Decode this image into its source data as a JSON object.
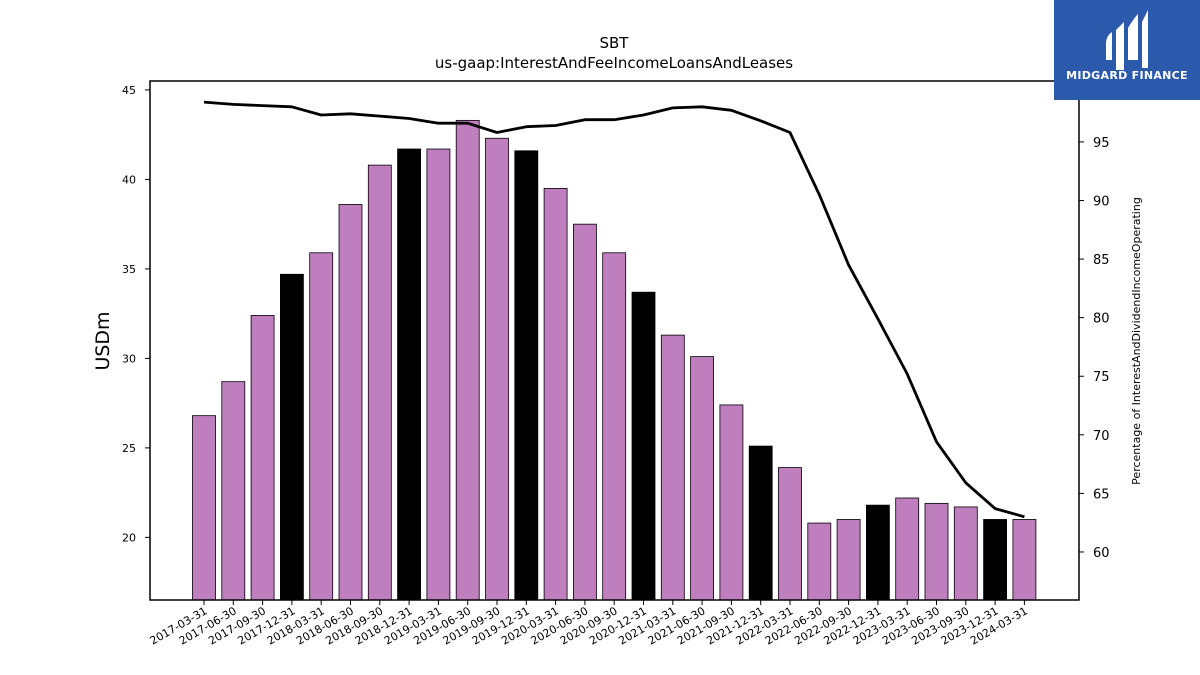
{
  "brand": {
    "name": "MIDGARD FINANCE",
    "background": "#2b5aad"
  },
  "chart_data": {
    "type": "bar",
    "title": "SBT",
    "subtitle": "us-gaap:InterestAndFeeIncomeLoansAndLeases",
    "ylabel": "USDm",
    "y2label": "Percentage of InterestAndDividendIncomeOperating",
    "ylim": [
      16.5,
      45.5
    ],
    "y2lim": [
      55.9,
      100.2
    ],
    "yticks": [
      20,
      25,
      30,
      35,
      40,
      45
    ],
    "y2ticks": [
      60,
      65,
      70,
      75,
      80,
      85,
      90,
      95
    ],
    "categories": [
      "2017-03-31",
      "2017-06-30",
      "2017-09-30",
      "2017-12-31",
      "2018-03-31",
      "2018-06-30",
      "2018-09-30",
      "2018-12-31",
      "2019-03-31",
      "2019-06-30",
      "2019-09-30",
      "2019-12-31",
      "2020-03-31",
      "2020-06-30",
      "2020-09-30",
      "2020-12-31",
      "2021-03-31",
      "2021-06-30",
      "2021-09-30",
      "2021-12-31",
      "2022-03-31",
      "2022-06-30",
      "2022-09-30",
      "2022-12-31",
      "2023-03-31",
      "2023-06-30",
      "2023-09-30",
      "2023-12-31",
      "2024-03-31"
    ],
    "series": [
      {
        "type": "bar",
        "axis": "left",
        "values": [
          26.8,
          28.7,
          32.4,
          34.7,
          35.9,
          38.6,
          40.8,
          41.7,
          41.7,
          43.3,
          42.3,
          41.6,
          39.5,
          37.5,
          35.9,
          33.7,
          31.3,
          30.1,
          27.4,
          25.1,
          23.9,
          20.8,
          21.0,
          21.8,
          22.2,
          21.9,
          21.7,
          21.0,
          21.0
        ],
        "colors": [
          "#bf7fbf",
          "#bf7fbf",
          "#bf7fbf",
          "#000000",
          "#bf7fbf",
          "#bf7fbf",
          "#bf7fbf",
          "#000000",
          "#bf7fbf",
          "#bf7fbf",
          "#bf7fbf",
          "#000000",
          "#bf7fbf",
          "#bf7fbf",
          "#bf7fbf",
          "#000000",
          "#bf7fbf",
          "#bf7fbf",
          "#bf7fbf",
          "#000000",
          "#bf7fbf",
          "#bf7fbf",
          "#bf7fbf",
          "#000000",
          "#bf7fbf",
          "#bf7fbf",
          "#bf7fbf",
          "#000000",
          "#bf7fbf"
        ]
      },
      {
        "type": "line",
        "axis": "right",
        "color": "#000000",
        "values": [
          98.4,
          98.2,
          98.1,
          98.0,
          97.3,
          97.4,
          97.2,
          97.0,
          96.6,
          96.6,
          95.8,
          96.3,
          96.4,
          96.9,
          96.9,
          97.3,
          97.9,
          98.0,
          97.7,
          96.8,
          95.8,
          90.5,
          84.5,
          79.9,
          75.2,
          69.4,
          65.9,
          63.7,
          63.0
        ]
      }
    ],
    "grid": false,
    "legend": "none"
  }
}
